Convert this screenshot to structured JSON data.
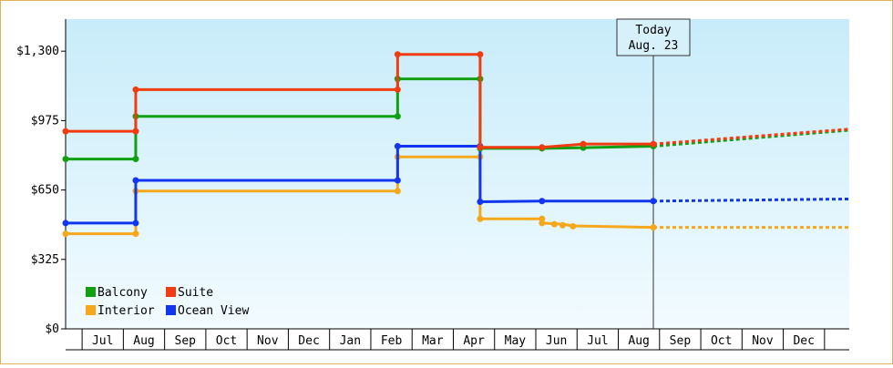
{
  "chart_data": {
    "type": "line",
    "step": true,
    "ylim": [
      0,
      1450
    ],
    "y_ticks": [
      {
        "value": 0,
        "label": "$0"
      },
      {
        "value": 325,
        "label": "$325"
      },
      {
        "value": 650,
        "label": "$650"
      },
      {
        "value": 975,
        "label": "$975"
      },
      {
        "value": 1300,
        "label": "$1,300"
      }
    ],
    "x_range": [
      0,
      19
    ],
    "categories": [
      "Jul",
      "Aug",
      "Sep",
      "Oct",
      "Nov",
      "Dec",
      "Jan",
      "Feb",
      "Mar",
      "Apr",
      "May",
      "Jun",
      "Jul",
      "Aug",
      "Sep",
      "Oct",
      "Nov",
      "Dec"
    ],
    "today": {
      "line1": "Today",
      "line2": "Aug. 23",
      "x": 14.25
    },
    "series": [
      {
        "name": "Balcony",
        "color": "#12a012",
        "points": [
          [
            0,
            795
          ],
          [
            1.7,
            795
          ],
          [
            1.7,
            995
          ],
          [
            8.05,
            995
          ],
          [
            8.05,
            1170
          ],
          [
            10.05,
            1170
          ],
          [
            10.05,
            845
          ],
          [
            11.55,
            845
          ],
          [
            12.55,
            848
          ],
          [
            14.25,
            855
          ]
        ],
        "markers": [
          [
            0,
            795
          ],
          [
            1.7,
            795
          ],
          [
            1.7,
            995
          ],
          [
            8.05,
            995
          ],
          [
            8.05,
            1170
          ],
          [
            10.05,
            1170
          ],
          [
            10.05,
            845
          ],
          [
            11.55,
            845
          ],
          [
            12.55,
            848
          ],
          [
            14.25,
            855
          ]
        ],
        "forecast": [
          [
            14.25,
            855
          ],
          [
            19,
            930
          ]
        ]
      },
      {
        "name": "Suite",
        "color": "#f03c10",
        "points": [
          [
            0,
            925
          ],
          [
            1.7,
            925
          ],
          [
            1.7,
            1120
          ],
          [
            8.05,
            1120
          ],
          [
            8.05,
            1285
          ],
          [
            10.05,
            1285
          ],
          [
            10.05,
            850
          ],
          [
            11.55,
            850
          ],
          [
            12.55,
            865
          ],
          [
            14.25,
            865
          ]
        ],
        "markers": [
          [
            0,
            925
          ],
          [
            1.7,
            925
          ],
          [
            1.7,
            1120
          ],
          [
            8.05,
            1120
          ],
          [
            8.05,
            1285
          ],
          [
            10.05,
            1285
          ],
          [
            10.05,
            850
          ],
          [
            11.55,
            850
          ],
          [
            12.55,
            865
          ],
          [
            14.25,
            865
          ]
        ],
        "forecast": [
          [
            14.25,
            865
          ],
          [
            19,
            935
          ]
        ]
      },
      {
        "name": "Interior",
        "color": "#f5a81c",
        "points": [
          [
            0,
            445
          ],
          [
            1.7,
            445
          ],
          [
            1.7,
            645
          ],
          [
            8.05,
            645
          ],
          [
            8.05,
            805
          ],
          [
            10.05,
            805
          ],
          [
            10.05,
            515
          ],
          [
            11.55,
            515
          ],
          [
            11.55,
            495
          ],
          [
            12.05,
            490
          ],
          [
            12.3,
            482
          ],
          [
            14.25,
            475
          ]
        ],
        "markers": [
          [
            0,
            445
          ],
          [
            1.7,
            445
          ],
          [
            1.7,
            645
          ],
          [
            8.05,
            645
          ],
          [
            8.05,
            805
          ],
          [
            10.05,
            805
          ],
          [
            10.05,
            515
          ],
          [
            11.55,
            515
          ],
          [
            11.55,
            495
          ],
          [
            11.85,
            490
          ],
          [
            12.05,
            485
          ],
          [
            12.3,
            480
          ],
          [
            14.25,
            475
          ]
        ],
        "forecast": [
          [
            14.25,
            475
          ],
          [
            19,
            475
          ]
        ]
      },
      {
        "name": "Ocean View",
        "color": "#1236f0",
        "points": [
          [
            0,
            495
          ],
          [
            1.7,
            495
          ],
          [
            1.7,
            695
          ],
          [
            8.05,
            695
          ],
          [
            8.05,
            855
          ],
          [
            10.05,
            855
          ],
          [
            10.05,
            595
          ],
          [
            11.55,
            598
          ],
          [
            14.25,
            598
          ]
        ],
        "markers": [
          [
            0,
            495
          ],
          [
            1.7,
            495
          ],
          [
            1.7,
            695
          ],
          [
            8.05,
            695
          ],
          [
            8.05,
            855
          ],
          [
            10.05,
            855
          ],
          [
            10.05,
            595
          ],
          [
            11.55,
            598
          ],
          [
            14.25,
            598
          ]
        ],
        "forecast": [
          [
            14.25,
            598
          ],
          [
            17.6,
            605
          ],
          [
            19,
            608
          ]
        ]
      }
    ],
    "legend": {
      "placement": "bottom-left",
      "entries": [
        "Balcony",
        "Suite",
        "Interior",
        "Ocean View"
      ]
    }
  }
}
